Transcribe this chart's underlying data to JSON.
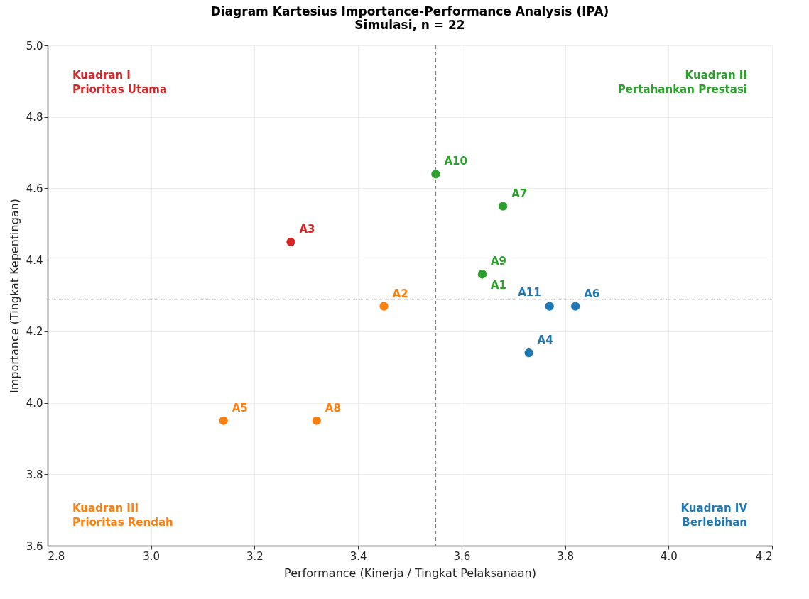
{
  "chart_data": {
    "type": "scatter",
    "title": "Diagram Kartesius Importance-Performance Analysis (IPA)",
    "subtitle": "Simulasi, n = 22",
    "xlabel": "Performance (Kinerja / Tingkat Pelaksanaan)",
    "ylabel": "Importance (Tingkat Kepentingan)",
    "series": [
      {
        "color": "#d62728",
        "x": [
          3.27
        ],
        "values": [
          4.45
        ]
      },
      {
        "color": "#2ca02c",
        "x": [
          3.55,
          3.68,
          3.64,
          3.64
        ],
        "values": [
          4.64,
          4.55,
          4.36,
          4.36
        ]
      },
      {
        "color": "#ff7f0e",
        "x": [
          3.45,
          3.14,
          3.32
        ],
        "values": [
          4.27,
          3.95,
          3.95
        ]
      },
      {
        "color": "#1f77b4",
        "x": [
          3.77,
          3.82,
          3.73
        ],
        "values": [
          4.27,
          4.27,
          4.14
        ]
      }
    ],
    "xlim": [
      2.8,
      4.2
    ],
    "xticks": [
      2.8,
      {
        "value": 3,
        "label": "3.0"
      },
      3.2,
      3.4,
      3.6,
      3.8,
      {
        "value": 4,
        "label": "4.0"
      },
      4.2
    ],
    "ylim": [
      3.6,
      5.0
    ],
    "yticks": [
      3.6,
      3.8,
      {
        "value": 4,
        "label": "4.0"
      },
      4.2,
      4.4,
      4.6,
      4.8,
      {
        "value": 5,
        "label": "5.0"
      }
    ],
    "ref_lines": [
      {
        "axis": "x",
        "value": 3.55,
        "color": "#808080",
        "line_style": "dashed"
      },
      {
        "axis": "y",
        "value": 4.29,
        "color": "#808080",
        "line_style": "dashed"
      }
    ],
    "annotations": [
      "Kuadran I\nPrioritas Utama",
      "Kuadran II\nPertahankan Prestasi",
      "Kuadran III\nPrioritas Rendah",
      "Kuadran IV\nBerlebihan",
      {
        "text": "A3",
        "x": 3.27,
        "y": 4.45
      },
      {
        "text": "A10",
        "x": 3.55,
        "y": 4.64
      },
      {
        "text": "A7",
        "x": 3.68,
        "y": 4.55
      },
      {
        "text": "A9",
        "x": 3.64,
        "y": 4.36
      },
      {
        "text": "A1",
        "x": 3.64,
        "y": 4.36
      },
      {
        "text": "A2",
        "x": 3.45,
        "y": 4.27
      },
      {
        "text": "A5",
        "x": 3.14,
        "y": 3.95
      },
      {
        "text": "A8",
        "x": 3.32,
        "y": 3.95
      },
      {
        "text": "A11",
        "x": 3.77,
        "y": 4.27
      },
      {
        "text": "A6",
        "x": 3.82,
        "y": 4.27
      },
      {
        "text": "A4",
        "x": 3.73,
        "y": 4.14
      }
    ],
    "grid": true,
    "legend": false,
    "marker": "circle"
  }
}
